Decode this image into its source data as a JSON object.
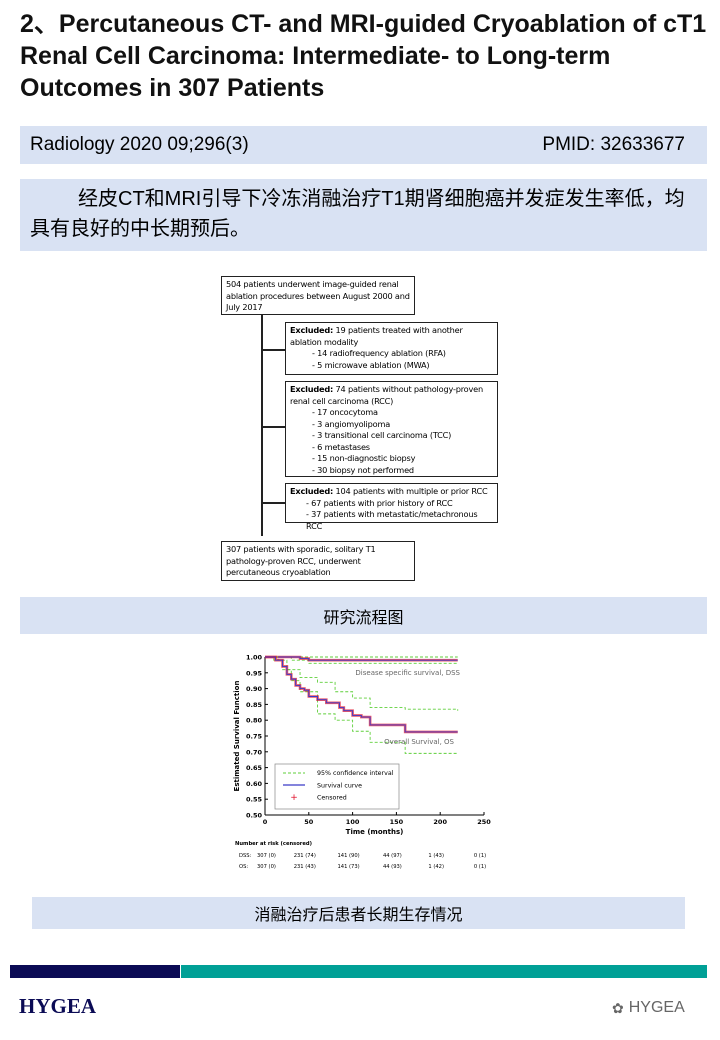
{
  "title": "2、Percutaneous CT- and MRI-guided Cryoablation of cT1 Renal Cell Carcinoma: Intermediate- to Long-term Outcomes in 307 Patients",
  "meta": {
    "journal": "Radiology 2020 09;296(3)",
    "pmid": "PMID: 32633677"
  },
  "summary": "经皮CT和MRI引导下冷冻消融治疗T1期肾细胞癌并发症发生率低，均具有良好的中长期预后。",
  "flowchart": {
    "start": "504 patients underwent image-guided renal ablation procedures between August 2000 and July 2017",
    "excl1": {
      "bold": "Excluded:",
      "text": " 19 patients treated with another ablation modality",
      "items": [
        "- 14 radiofrequency ablation (RFA)",
        "- 5 microwave ablation (MWA)"
      ]
    },
    "excl2": {
      "bold": "Excluded:",
      "text": " 74 patients without pathology-proven renal cell carcinoma (RCC)",
      "items": [
        "- 17 oncocytoma",
        "- 3 angiomyolipoma",
        "- 3 transitional cell carcinoma (TCC)",
        "- 6 metastases",
        "- 15 non-diagnostic biopsy",
        "- 30 biopsy not performed"
      ]
    },
    "excl3": {
      "bold": "Excluded:",
      "text": " 104 patients with multiple or prior RCC",
      "items": [
        "- 67 patients with prior history of RCC",
        "- 37 patients with metastatic/metachronous RCC"
      ]
    },
    "end": "307 patients with sporadic, solitary T1 pathology-proven RCC, underwent percutaneous cryoablation"
  },
  "caption1": "研究流程图",
  "chart_data": {
    "type": "line",
    "xlabel": "Time (months)",
    "ylabel": "Estimated Survival Function",
    "xlim": [
      0,
      250
    ],
    "ylim": [
      0.5,
      1.0
    ],
    "xticks": [
      "0",
      "50",
      "100",
      "150",
      "200",
      "250"
    ],
    "yticks": [
      "0.50",
      "0.55",
      "0.60",
      "0.65",
      "0.70",
      "0.75",
      "0.80",
      "0.85",
      "0.90",
      "0.95",
      "1.00"
    ],
    "legend": {
      "placement": "bottom-left",
      "entries": [
        "95% confidence interval",
        "Survival curve",
        "Censored"
      ]
    },
    "annotations": [
      "Disease specific survival, DSS",
      "Overall Survival, OS"
    ],
    "colors": {
      "ci": "#5fcf3a",
      "curve": "#3a3ac8",
      "censored": "#e0102a"
    },
    "series": [
      {
        "name": "DSS",
        "x": [
          0,
          30,
          40,
          50,
          220
        ],
        "y": [
          1.0,
          1.0,
          0.995,
          0.99,
          0.99
        ],
        "ci_upper": {
          "x": [
            0,
            220
          ],
          "y": [
            1.0,
            1.0
          ]
        },
        "ci_lower": {
          "x": [
            0,
            30,
            50,
            220
          ],
          "y": [
            1.0,
            0.99,
            0.98,
            0.98
          ]
        }
      },
      {
        "name": "OS",
        "x": [
          0,
          8,
          12,
          20,
          25,
          30,
          35,
          40,
          45,
          50,
          60,
          70,
          85,
          90,
          100,
          110,
          120,
          160,
          160,
          220
        ],
        "y": [
          1.0,
          1.0,
          0.99,
          0.97,
          0.945,
          0.93,
          0.91,
          0.9,
          0.895,
          0.875,
          0.865,
          0.855,
          0.84,
          0.83,
          0.815,
          0.81,
          0.785,
          0.785,
          0.763,
          0.763
        ],
        "ci_upper": {
          "x": [
            0,
            15,
            25,
            40,
            60,
            80,
            100,
            120,
            160,
            220
          ],
          "y": [
            1.0,
            0.99,
            0.96,
            0.935,
            0.92,
            0.89,
            0.87,
            0.84,
            0.835,
            0.83
          ]
        },
        "ci_lower": {
          "x": [
            0,
            10,
            20,
            30,
            40,
            60,
            80,
            100,
            120,
            160,
            220
          ],
          "y": [
            1.0,
            0.99,
            0.96,
            0.925,
            0.89,
            0.82,
            0.8,
            0.765,
            0.73,
            0.695,
            0.695
          ]
        }
      }
    ],
    "risk_table": {
      "title": "Number at risk (censored)",
      "rows": [
        {
          "label": "DSS:",
          "values": [
            "307 (0)",
            "231 (74)",
            "141 (90)",
            "44 (97)",
            "1 (43)",
            "0 (1)"
          ]
        },
        {
          "label": "OS:",
          "values": [
            "307 (0)",
            "231 (43)",
            "141 (73)",
            "44 (93)",
            "1 (42)",
            "0 (1)"
          ]
        }
      ]
    }
  },
  "caption2": "消融治疗后患者长期生存情况",
  "footer": {
    "logo": "HYGEA",
    "watermark": "HYGEA"
  }
}
